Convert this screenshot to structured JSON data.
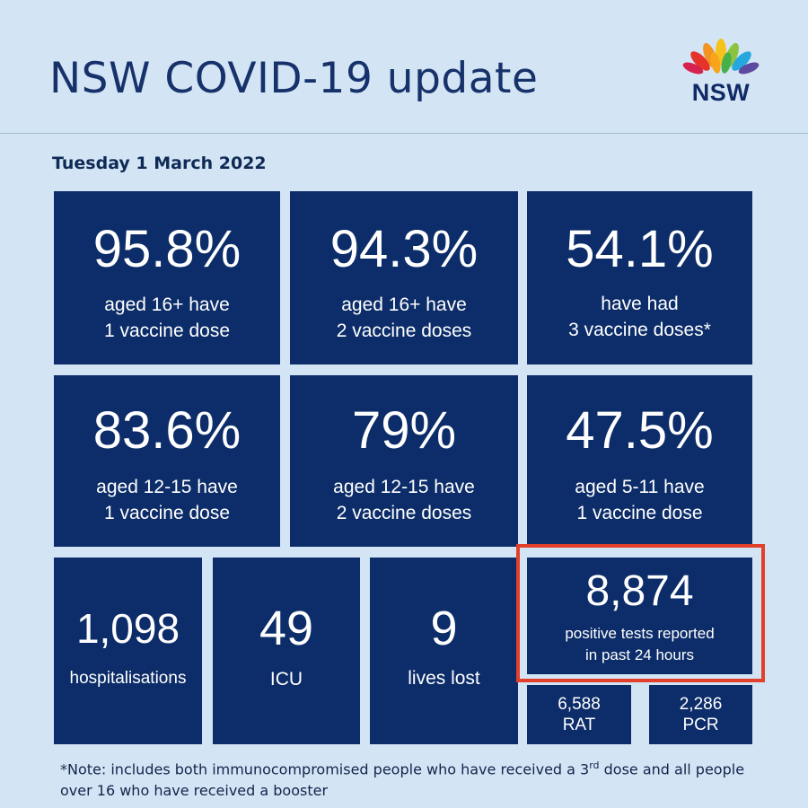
{
  "header": {
    "title": "NSW COVID-19 update",
    "logo_text": "NSW"
  },
  "date": "Tuesday 1 March 2022",
  "colors": {
    "background": "#d3e5f4",
    "tile": "#0c2d69",
    "title_text": "#17326b",
    "highlight": "#e2402b"
  },
  "vaccination": [
    {
      "value": "95.8%",
      "line1": "aged 16+ have",
      "line2": "1 vaccine dose"
    },
    {
      "value": "94.3%",
      "line1": "aged 16+ have",
      "line2": "2 vaccine doses"
    },
    {
      "value": "54.1%",
      "line1": "have had",
      "line2": "3 vaccine doses*"
    },
    {
      "value": "83.6%",
      "line1": "aged 12-15 have",
      "line2": "1 vaccine dose"
    },
    {
      "value": "79%",
      "line1": "aged 12-15 have",
      "line2": "2 vaccine doses"
    },
    {
      "value": "47.5%",
      "line1": "aged 5-11 have",
      "line2": "1 vaccine dose"
    }
  ],
  "stats": {
    "hospitalisations": {
      "value": "1,098",
      "label": "hospitalisations"
    },
    "icu": {
      "value": "49",
      "label": "ICU"
    },
    "deaths": {
      "value": "9",
      "label": "lives lost"
    },
    "positive": {
      "value": "8,874",
      "line1": "positive tests reported",
      "line2": "in past 24 hours"
    },
    "rat": {
      "value": "6,588",
      "label": "RAT"
    },
    "pcr": {
      "value": "2,286",
      "label": "PCR"
    }
  },
  "note": {
    "prefix": "*Note: includes both immunocompromised people who have received a 3",
    "sup": "rd",
    "suffix": " dose and all people over 16 who have received a booster"
  }
}
